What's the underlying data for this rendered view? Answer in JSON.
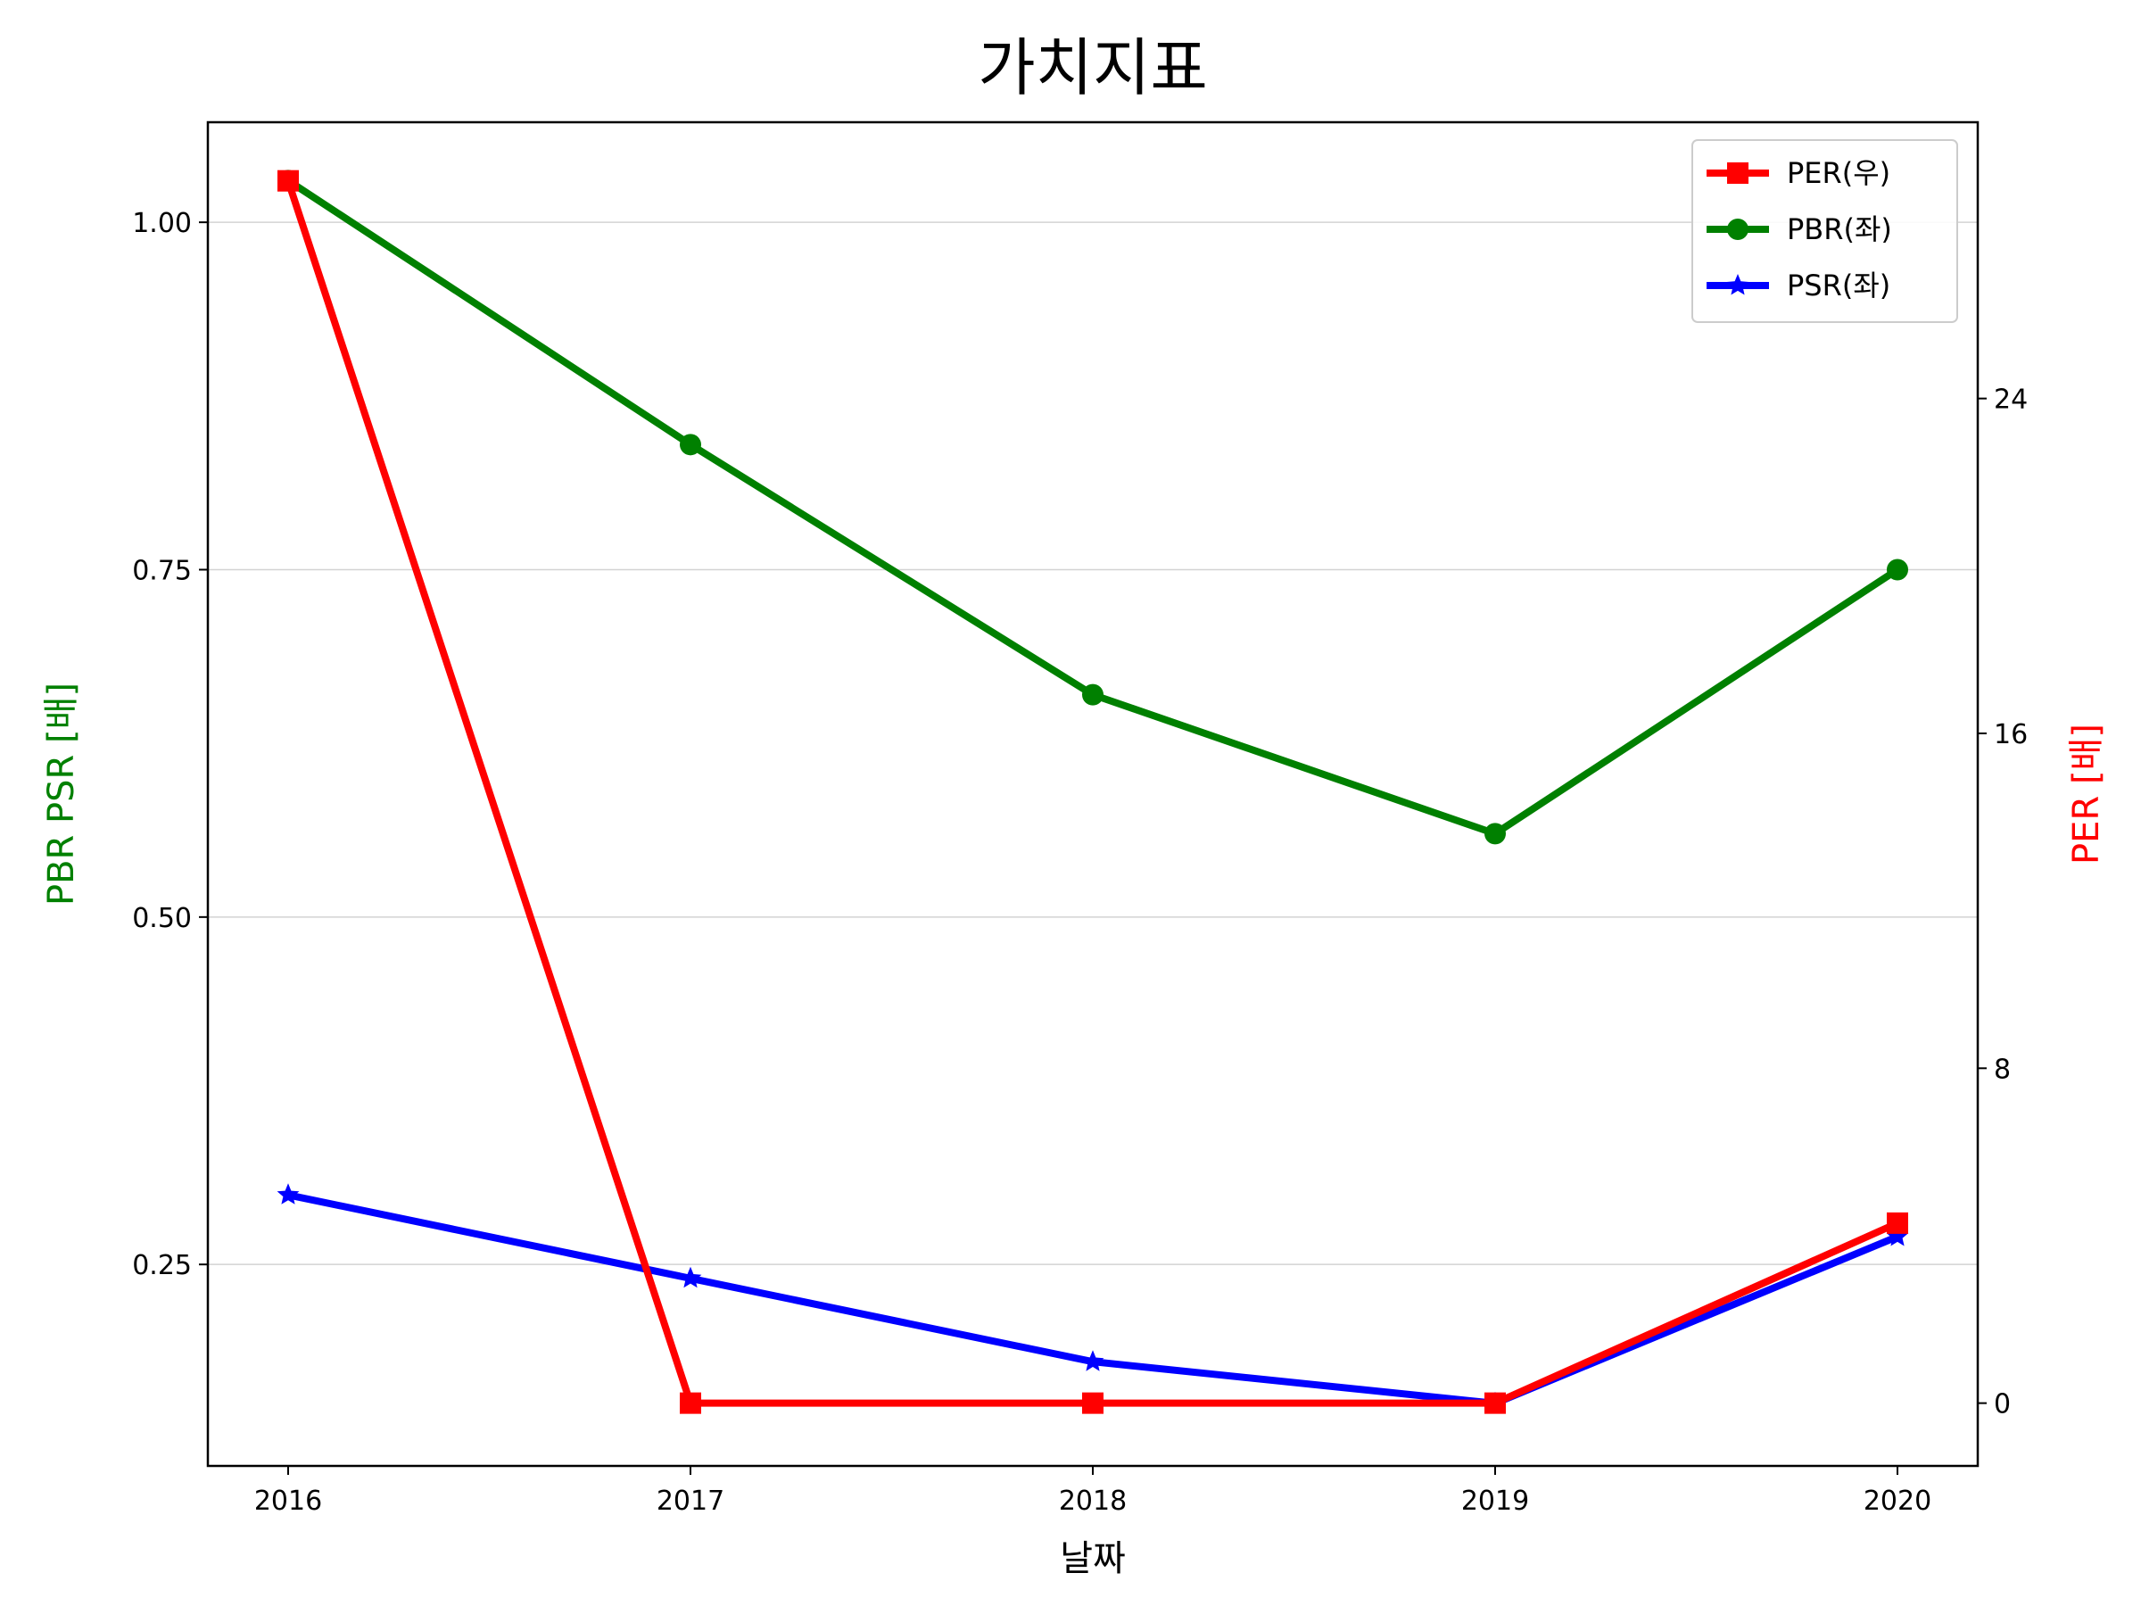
{
  "chart_data": {
    "type": "line",
    "title": "가치지표",
    "xlabel": "날짜",
    "ylabel_left": "PBR PSR [배]",
    "ylabel_right": "PER [배]",
    "x": [
      "2016",
      "2017",
      "2018",
      "2019",
      "2020"
    ],
    "ylim_left": [
      0.105,
      1.072
    ],
    "yticks_left": [
      "0.25",
      "0.50",
      "0.75",
      "1.00"
    ],
    "ylim_right": [
      -1.5,
      30.6
    ],
    "yticks_right": [
      "0",
      "8",
      "16",
      "24"
    ],
    "grid": "horizontal (left axis)",
    "legend_position": "top-right",
    "series": [
      {
        "name": "PER(우)",
        "axis": "right",
        "color": "#ff0000",
        "marker": "square",
        "values": [
          29.2,
          0,
          0,
          0,
          4.3
        ]
      },
      {
        "name": "PBR(좌)",
        "axis": "left",
        "color": "#008000",
        "marker": "circle",
        "values": [
          1.03,
          0.84,
          0.66,
          0.56,
          0.75
        ]
      },
      {
        "name": "PSR(좌)",
        "axis": "left",
        "color": "#0000ff",
        "marker": "star",
        "values": [
          0.3,
          0.24,
          0.18,
          0.15,
          0.27
        ]
      }
    ]
  },
  "colors": {
    "left_axis_label": "#008000",
    "right_axis_label": "#ff0000",
    "grid": "#d3d3d3"
  }
}
